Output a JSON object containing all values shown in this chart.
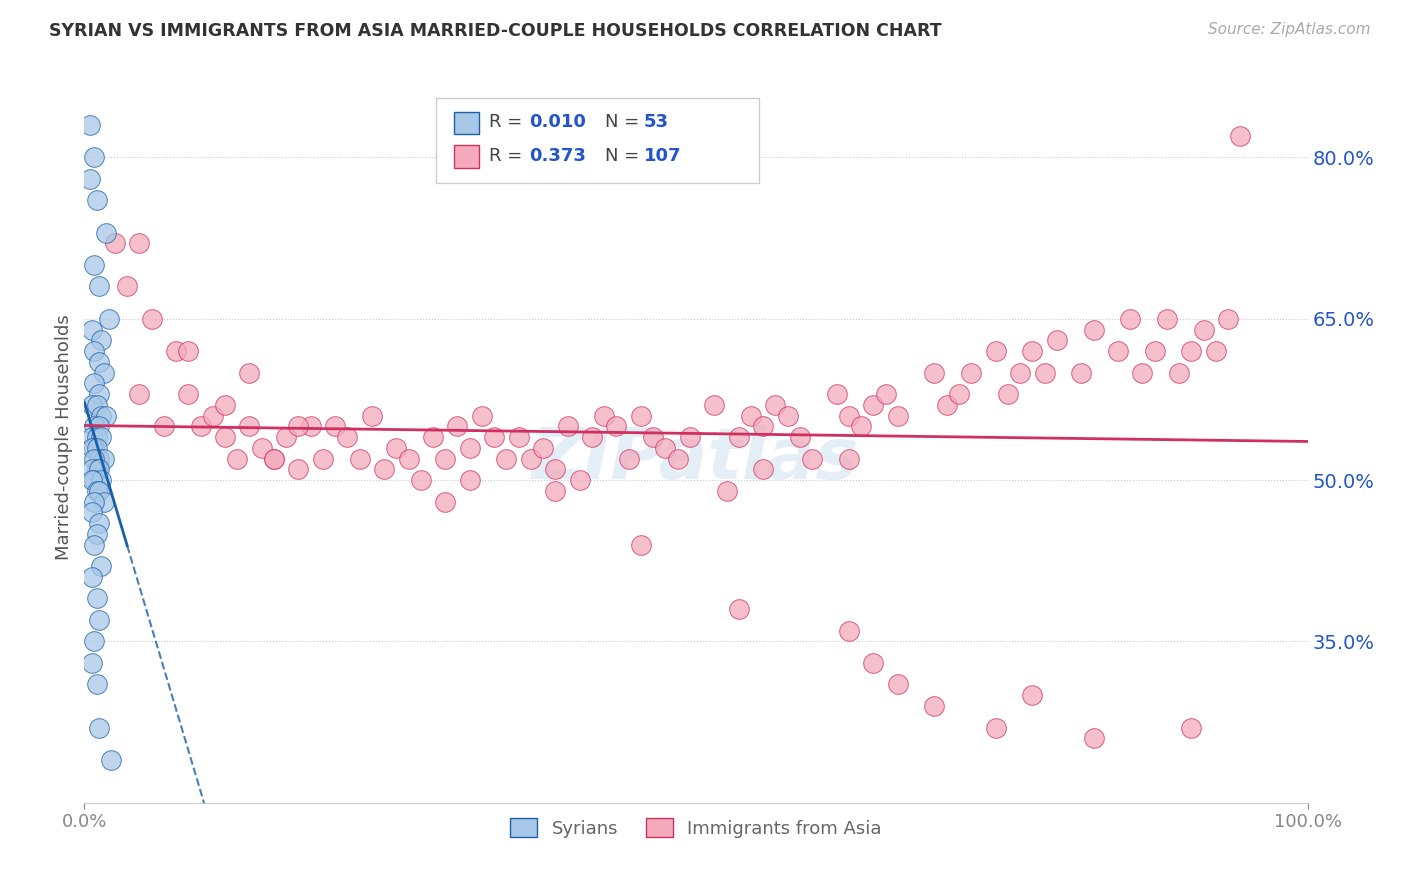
{
  "title": "SYRIAN VS IMMIGRANTS FROM ASIA MARRIED-COUPLE HOUSEHOLDS CORRELATION CHART",
  "source": "Source: ZipAtlas.com",
  "ylabel": "Married-couple Households",
  "label1": "Syrians",
  "label2": "Immigrants from Asia",
  "color_blue": "#a8c8e8",
  "color_pink": "#f4aabc",
  "line_color_blue": "#1a5fa8",
  "line_color_pink": "#d03060",
  "r_n_color": "#2255cc",
  "yticks": [
    "80.0%",
    "65.0%",
    "50.0%",
    "35.0%"
  ],
  "ytick_vals": [
    0.8,
    0.65,
    0.5,
    0.35
  ],
  "xlim": [
    0.0,
    1.0
  ],
  "ylim": [
    0.2,
    0.88
  ],
  "syrians_x": [
    0.005,
    0.008,
    0.005,
    0.01,
    0.018,
    0.008,
    0.012,
    0.02,
    0.006,
    0.014,
    0.008,
    0.012,
    0.016,
    0.008,
    0.012,
    0.006,
    0.01,
    0.014,
    0.018,
    0.008,
    0.012,
    0.006,
    0.01,
    0.014,
    0.008,
    0.006,
    0.01,
    0.012,
    0.016,
    0.008,
    0.01,
    0.006,
    0.012,
    0.008,
    0.014,
    0.006,
    0.01,
    0.012,
    0.016,
    0.008,
    0.006,
    0.012,
    0.01,
    0.008,
    0.014,
    0.006,
    0.01,
    0.012,
    0.008,
    0.006,
    0.01,
    0.012,
    0.022
  ],
  "syrians_y": [
    0.83,
    0.8,
    0.78,
    0.76,
    0.73,
    0.7,
    0.68,
    0.65,
    0.64,
    0.63,
    0.62,
    0.61,
    0.6,
    0.59,
    0.58,
    0.57,
    0.57,
    0.56,
    0.56,
    0.55,
    0.55,
    0.54,
    0.54,
    0.54,
    0.53,
    0.53,
    0.53,
    0.52,
    0.52,
    0.52,
    0.51,
    0.51,
    0.51,
    0.5,
    0.5,
    0.5,
    0.49,
    0.49,
    0.48,
    0.48,
    0.47,
    0.46,
    0.45,
    0.44,
    0.42,
    0.41,
    0.39,
    0.37,
    0.35,
    0.33,
    0.31,
    0.27,
    0.24
  ],
  "asia_x": [
    0.025,
    0.035,
    0.045,
    0.055,
    0.065,
    0.075,
    0.085,
    0.095,
    0.105,
    0.115,
    0.125,
    0.135,
    0.145,
    0.155,
    0.165,
    0.175,
    0.185,
    0.195,
    0.205,
    0.215,
    0.225,
    0.235,
    0.245,
    0.255,
    0.265,
    0.275,
    0.285,
    0.295,
    0.305,
    0.315,
    0.325,
    0.335,
    0.345,
    0.355,
    0.365,
    0.375,
    0.385,
    0.395,
    0.415,
    0.425,
    0.435,
    0.445,
    0.455,
    0.465,
    0.475,
    0.485,
    0.495,
    0.515,
    0.525,
    0.535,
    0.545,
    0.555,
    0.565,
    0.575,
    0.585,
    0.595,
    0.615,
    0.625,
    0.635,
    0.645,
    0.655,
    0.665,
    0.695,
    0.705,
    0.715,
    0.725,
    0.745,
    0.755,
    0.765,
    0.775,
    0.785,
    0.795,
    0.815,
    0.825,
    0.845,
    0.855,
    0.865,
    0.875,
    0.885,
    0.895,
    0.905,
    0.915,
    0.925,
    0.935,
    0.945,
    0.555,
    0.625,
    0.045,
    0.085,
    0.115,
    0.135,
    0.155,
    0.175,
    0.295,
    0.315,
    0.385,
    0.405,
    0.455,
    0.535,
    0.625,
    0.645,
    0.665,
    0.695,
    0.745,
    0.775,
    0.825,
    0.905
  ],
  "asia_y": [
    0.72,
    0.68,
    0.58,
    0.65,
    0.55,
    0.62,
    0.58,
    0.55,
    0.56,
    0.54,
    0.52,
    0.55,
    0.53,
    0.52,
    0.54,
    0.51,
    0.55,
    0.52,
    0.55,
    0.54,
    0.52,
    0.56,
    0.51,
    0.53,
    0.52,
    0.5,
    0.54,
    0.52,
    0.55,
    0.53,
    0.56,
    0.54,
    0.52,
    0.54,
    0.52,
    0.53,
    0.51,
    0.55,
    0.54,
    0.56,
    0.55,
    0.52,
    0.56,
    0.54,
    0.53,
    0.52,
    0.54,
    0.57,
    0.49,
    0.54,
    0.56,
    0.55,
    0.57,
    0.56,
    0.54,
    0.52,
    0.58,
    0.56,
    0.55,
    0.57,
    0.58,
    0.56,
    0.6,
    0.57,
    0.58,
    0.6,
    0.62,
    0.58,
    0.6,
    0.62,
    0.6,
    0.63,
    0.6,
    0.64,
    0.62,
    0.65,
    0.6,
    0.62,
    0.65,
    0.6,
    0.62,
    0.64,
    0.62,
    0.65,
    0.82,
    0.51,
    0.52,
    0.72,
    0.62,
    0.57,
    0.6,
    0.52,
    0.55,
    0.48,
    0.5,
    0.49,
    0.5,
    0.44,
    0.38,
    0.36,
    0.33,
    0.31,
    0.29,
    0.27,
    0.3,
    0.26,
    0.27
  ]
}
